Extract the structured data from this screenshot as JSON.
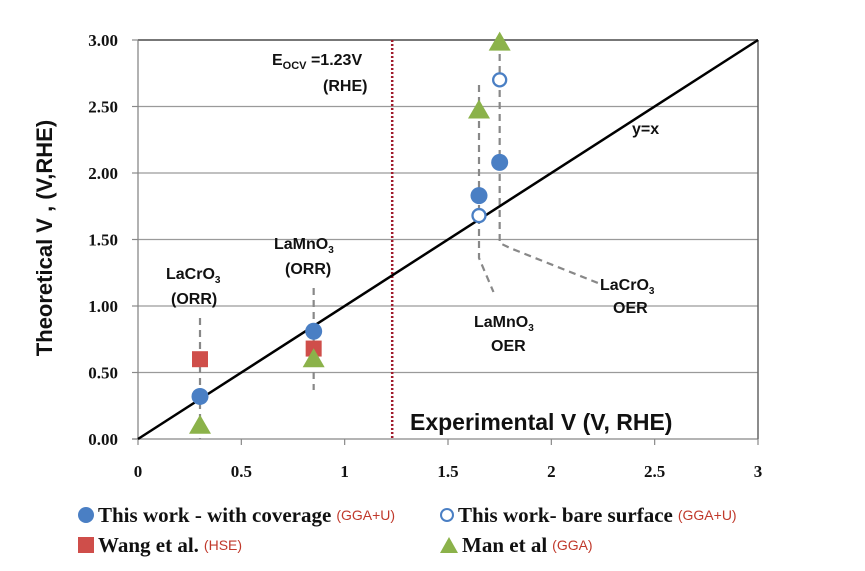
{
  "chart_data": {
    "type": "scatter",
    "title": "",
    "xlabel": "Experimental V (V, RHE)",
    "ylabel": "Theoretical V , (V,RHE)",
    "xlim": [
      0,
      3
    ],
    "ylim": [
      0,
      3
    ],
    "x_ticks": [
      "0",
      "0.5",
      "1",
      "1.5",
      "2",
      "2.5",
      "3"
    ],
    "x_tick_values": [
      0,
      0.5,
      1,
      1.5,
      2,
      2.5,
      3
    ],
    "y_ticks": [
      "0.00",
      "0.50",
      "1.00",
      "1.50",
      "2.00",
      "2.50",
      "3.00"
    ],
    "y_tick_values": [
      0,
      0.5,
      1.0,
      1.5,
      2.0,
      2.5,
      3.0
    ],
    "grid": "horizontal",
    "reference_line": {
      "label": "y=x",
      "from": [
        0,
        0
      ],
      "to": [
        3,
        3
      ]
    },
    "ocv_line": {
      "x": 1.23,
      "label_main": "E",
      "label_sub": "OCV",
      "label_value": " =1.23V",
      "label_line2": "(RHE)",
      "color": "#a01c2c"
    },
    "series": [
      {
        "name": "This work - with coverage",
        "method": "(GGA+U)",
        "marker": "circle",
        "color": "#4a7fc4",
        "points": [
          [
            0.3,
            0.32
          ],
          [
            0.85,
            0.81
          ],
          [
            1.65,
            1.83
          ],
          [
            1.75,
            2.08
          ]
        ]
      },
      {
        "name": "This work- bare surface",
        "method": "(GGA+U)",
        "marker": "open-circle",
        "color": "#4a7fc4",
        "points": [
          [
            1.65,
            1.68
          ],
          [
            1.75,
            2.7
          ]
        ]
      },
      {
        "name": "Wang et al.",
        "method": "(HSE)",
        "marker": "square",
        "color": "#cf4e4a",
        "points": [
          [
            0.3,
            0.6
          ],
          [
            0.85,
            0.68
          ]
        ]
      },
      {
        "name": "Man et al",
        "method": "(GGA)",
        "marker": "triangle",
        "color": "#8bb24a",
        "points": [
          [
            0.3,
            0.1
          ],
          [
            0.85,
            0.6
          ],
          [
            1.65,
            2.47
          ],
          [
            1.75,
            2.98
          ]
        ]
      }
    ],
    "annotations": [
      {
        "id": "lacro3-orr",
        "main": "LaCr",
        "sub": "3",
        "mid": "O",
        "line2": "(ORR)"
      },
      {
        "id": "lamno3-orr",
        "main": "LaMn",
        "sub": "3",
        "mid": "O",
        "line2": "(ORR)"
      },
      {
        "id": "lamno3-oer",
        "main": "LaMn",
        "sub": "3",
        "mid": "O",
        "line2": "OER"
      },
      {
        "id": "lacro3-oer",
        "main": "LaCr",
        "sub": "3",
        "mid": "O",
        "line2": "OER"
      }
    ],
    "legend_position": "bottom"
  }
}
